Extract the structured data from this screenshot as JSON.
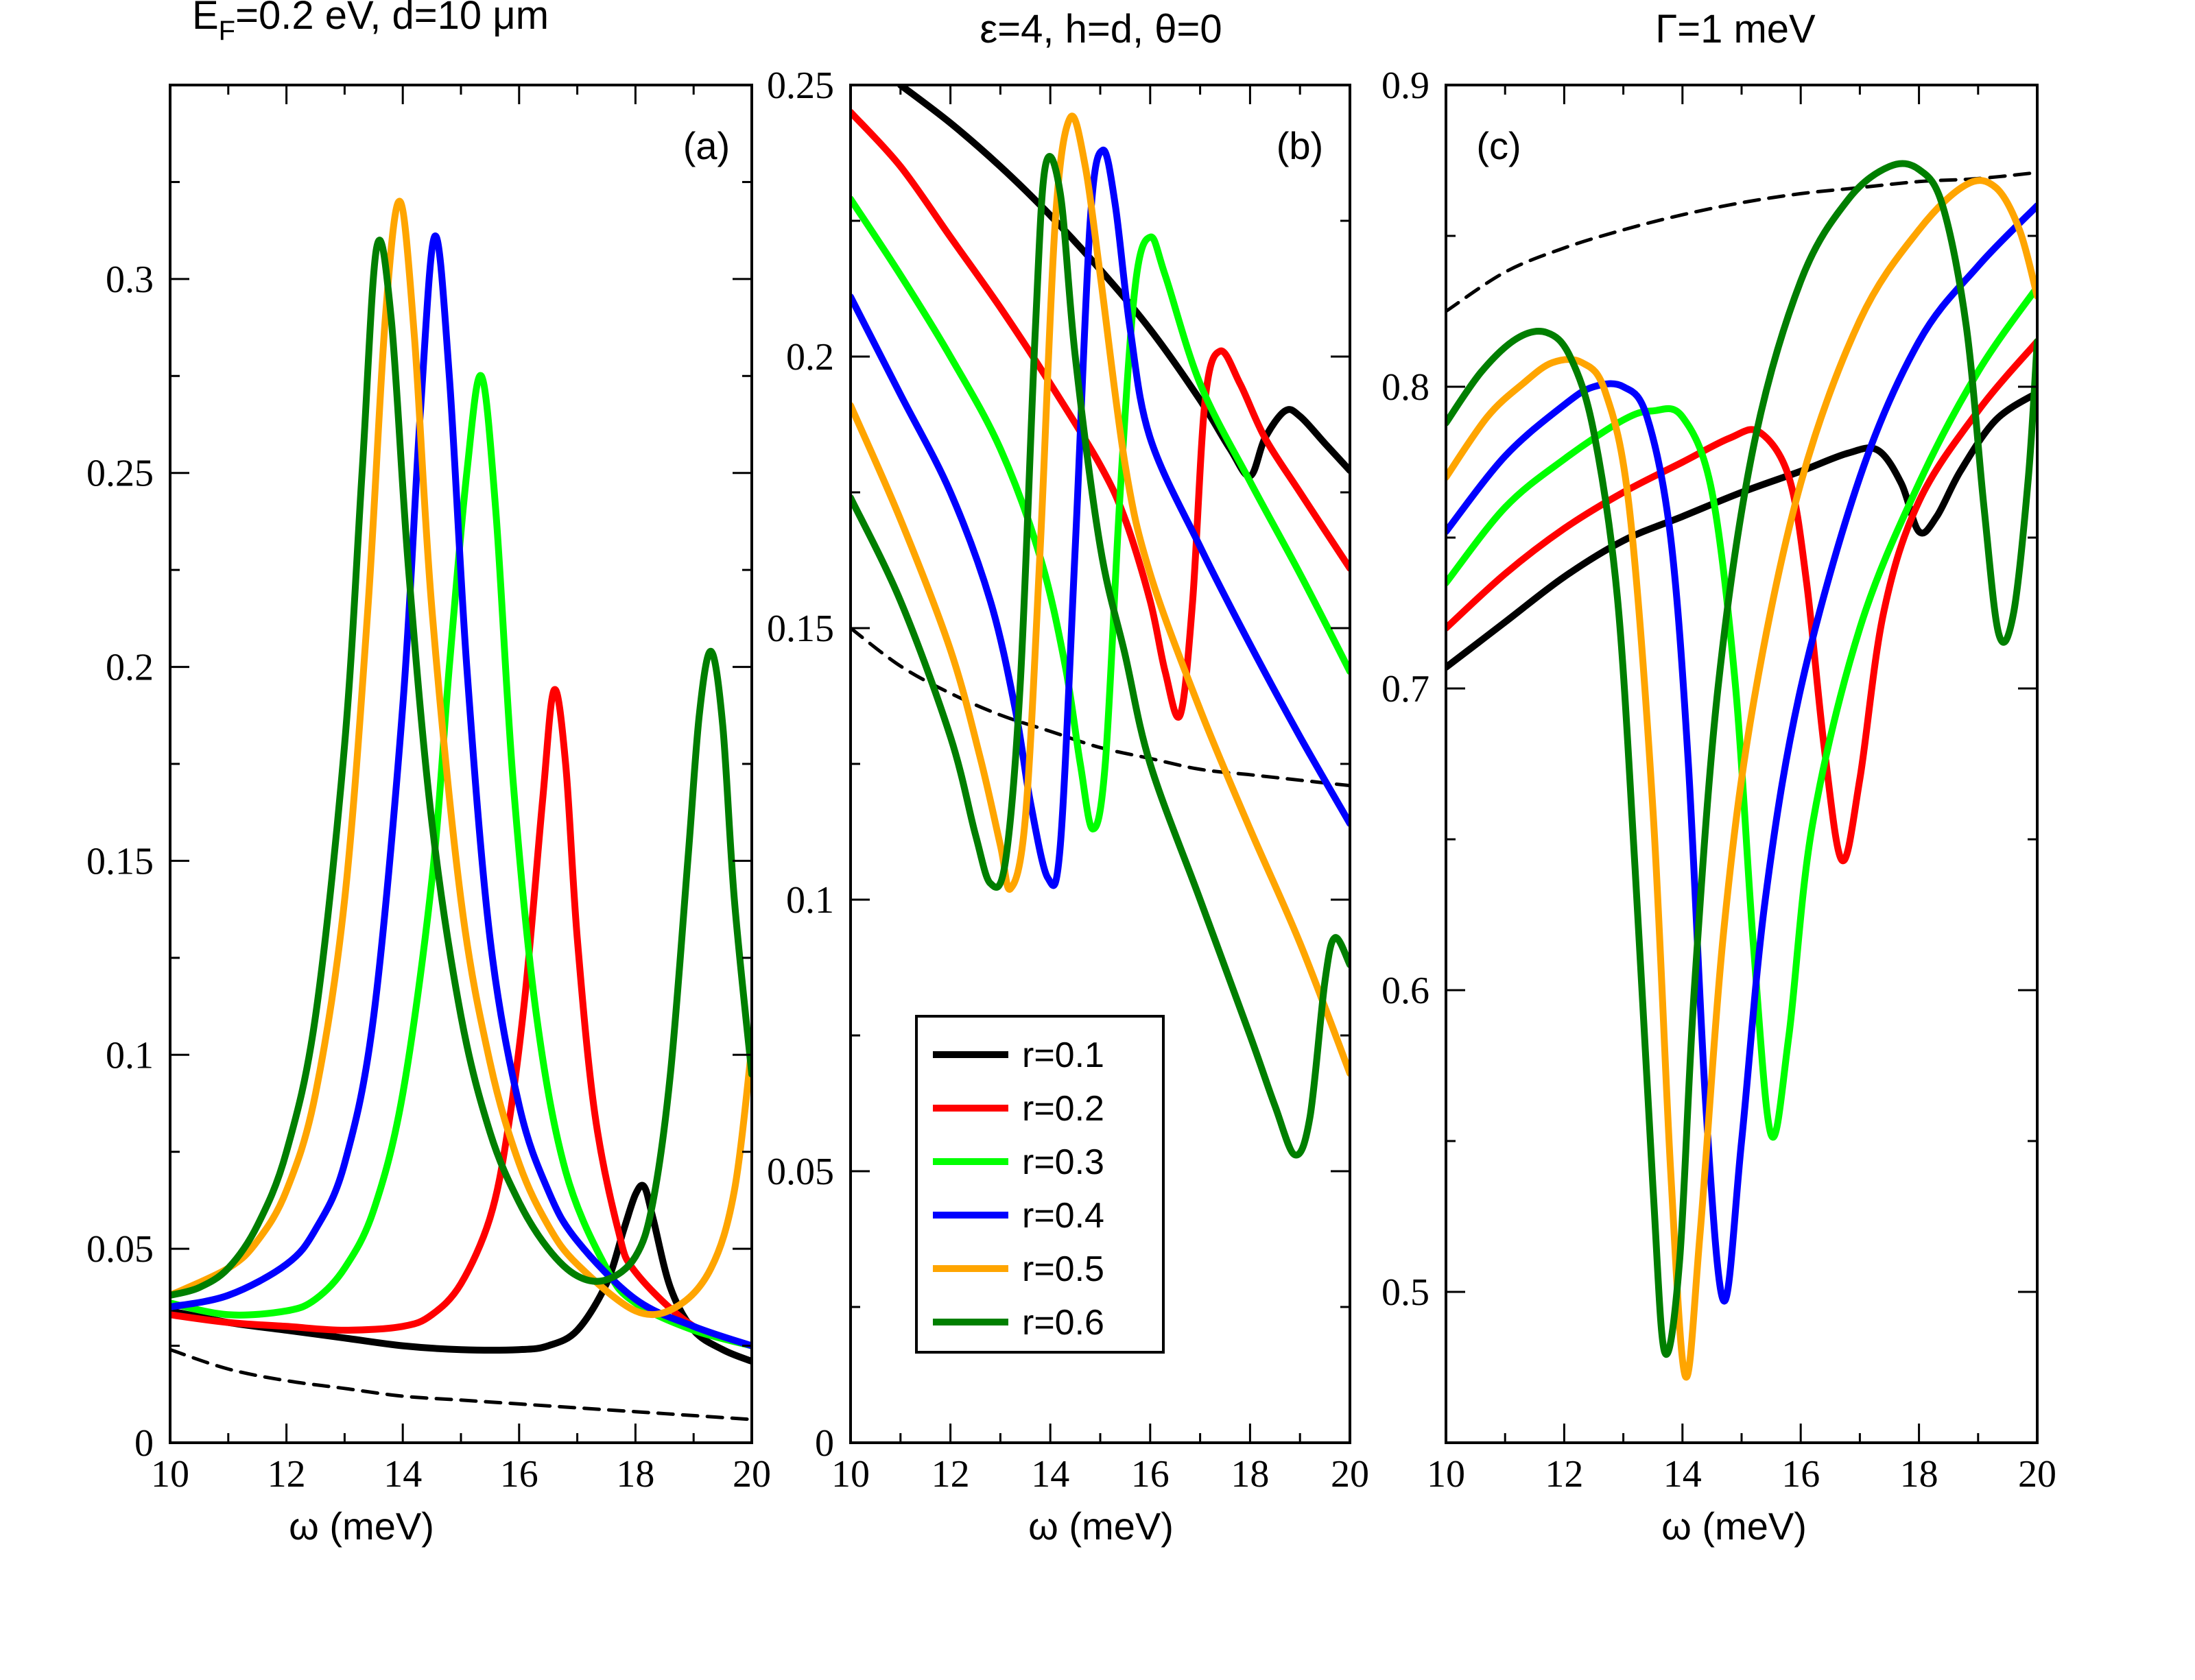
{
  "chart_data": [
    {
      "type": "line",
      "panel_label": "(a)",
      "title_parts": {
        "prefix": "E",
        "subscript": "F",
        "suffix": "=0.2 eV, d=10 μm"
      },
      "xlabel": "ω (meV)",
      "ylabel": "",
      "xlim": [
        10,
        20
      ],
      "ylim": [
        0,
        0.35
      ],
      "xticks": [
        10,
        12,
        14,
        16,
        18,
        20
      ],
      "yticks": [
        0,
        0.05,
        0.1,
        0.15,
        0.2,
        0.25,
        0.3
      ],
      "ytick_labels": [
        "0",
        "0.05",
        "0.1",
        "0.15",
        "0.2",
        "0.25",
        "0.3"
      ],
      "series": [
        {
          "name": "r=0.1",
          "color": "#000000",
          "x": [
            10,
            11,
            12,
            13,
            14,
            15,
            16,
            16.5,
            17,
            17.5,
            17.8,
            18.0,
            18.15,
            18.3,
            18.6,
            19,
            19.5,
            20
          ],
          "y": [
            0.034,
            0.031,
            0.029,
            0.027,
            0.025,
            0.024,
            0.024,
            0.025,
            0.029,
            0.041,
            0.055,
            0.064,
            0.066,
            0.058,
            0.04,
            0.029,
            0.024,
            0.021
          ]
        },
        {
          "name": "r=0.2",
          "color": "#ff0000",
          "x": [
            10,
            11,
            12,
            13,
            14,
            14.5,
            15,
            15.5,
            15.8,
            16.1,
            16.4,
            16.6,
            16.8,
            17.0,
            17.3,
            17.7,
            18,
            19,
            20
          ],
          "y": [
            0.033,
            0.031,
            0.03,
            0.029,
            0.03,
            0.033,
            0.041,
            0.058,
            0.08,
            0.115,
            0.165,
            0.194,
            0.175,
            0.13,
            0.085,
            0.055,
            0.044,
            0.03,
            0.025
          ]
        },
        {
          "name": "r=0.3",
          "color": "#00ff00",
          "x": [
            10,
            11,
            12,
            12.5,
            13,
            13.5,
            14,
            14.5,
            14.8,
            15.1,
            15.35,
            15.6,
            15.9,
            16.3,
            16.8,
            17.5,
            18,
            19,
            20
          ],
          "y": [
            0.036,
            0.033,
            0.034,
            0.037,
            0.045,
            0.06,
            0.09,
            0.145,
            0.2,
            0.25,
            0.275,
            0.24,
            0.17,
            0.11,
            0.07,
            0.045,
            0.036,
            0.029,
            0.025
          ]
        },
        {
          "name": "r=0.4",
          "color": "#0000ff",
          "x": [
            10,
            11,
            12,
            12.5,
            13,
            13.5,
            14,
            14.3,
            14.55,
            14.8,
            15.1,
            15.5,
            16,
            16.5,
            17,
            18,
            19,
            20
          ],
          "y": [
            0.035,
            0.038,
            0.046,
            0.055,
            0.072,
            0.11,
            0.19,
            0.265,
            0.311,
            0.275,
            0.2,
            0.13,
            0.087,
            0.065,
            0.052,
            0.037,
            0.03,
            0.025
          ]
        },
        {
          "name": "r=0.5",
          "color": "#ffa500",
          "x": [
            10,
            11,
            11.5,
            12,
            12.5,
            13,
            13.4,
            13.7,
            13.95,
            14.2,
            14.5,
            15,
            15.5,
            16,
            16.5,
            17,
            18,
            18.7,
            19.3,
            19.7,
            20
          ],
          "y": [
            0.038,
            0.045,
            0.052,
            0.065,
            0.09,
            0.14,
            0.215,
            0.29,
            0.32,
            0.285,
            0.215,
            0.14,
            0.098,
            0.072,
            0.056,
            0.046,
            0.034,
            0.035,
            0.045,
            0.065,
            0.102
          ]
        },
        {
          "name": "r=0.6",
          "color": "#007f00",
          "x": [
            10,
            10.5,
            11,
            11.5,
            12,
            12.5,
            13,
            13.3,
            13.55,
            13.8,
            14.1,
            14.5,
            15,
            15.5,
            16,
            16.5,
            17,
            17.5,
            18,
            18.3,
            18.6,
            18.9,
            19.1,
            19.3,
            19.5,
            19.7,
            20
          ],
          "y": [
            0.038,
            0.04,
            0.045,
            0.056,
            0.075,
            0.11,
            0.18,
            0.25,
            0.308,
            0.29,
            0.225,
            0.16,
            0.11,
            0.08,
            0.062,
            0.05,
            0.043,
            0.042,
            0.048,
            0.062,
            0.095,
            0.15,
            0.188,
            0.204,
            0.185,
            0.14,
            0.095
          ]
        },
        {
          "name": "",
          "color": "#000000",
          "dashed": true,
          "x": [
            10,
            11,
            12,
            13,
            14,
            15,
            16,
            17,
            18,
            19,
            20
          ],
          "y": [
            0.024,
            0.019,
            0.016,
            0.014,
            0.012,
            0.011,
            0.01,
            0.009,
            0.008,
            0.007,
            0.006
          ]
        }
      ]
    },
    {
      "type": "line",
      "panel_label": "(b)",
      "title": "ε=4, h=d, θ=0",
      "xlabel": "ω (meV)",
      "ylabel": "",
      "xlim": [
        10,
        20
      ],
      "ylim": [
        0,
        0.25
      ],
      "xticks": [
        10,
        12,
        14,
        16,
        18,
        20
      ],
      "yticks": [
        0,
        0.05,
        0.1,
        0.15,
        0.2,
        0.25
      ],
      "ytick_labels": [
        "0",
        "0.05",
        "0.1",
        "0.15",
        "0.2",
        "0.25"
      ],
      "legend": {
        "position": "lower-center",
        "entries": [
          "r=0.1",
          "r=0.2",
          "r=0.3",
          "r=0.4",
          "r=0.5",
          "r=0.6"
        ]
      },
      "series": [
        {
          "name": "r=0.1",
          "color": "#000000",
          "x": [
            11,
            12,
            13,
            14,
            15,
            16,
            17,
            17.6,
            18.0,
            18.3,
            18.7,
            19.0,
            19.5,
            20
          ],
          "y": [
            0.25,
            0.243,
            0.235,
            0.226,
            0.216,
            0.205,
            0.192,
            0.183,
            0.178,
            0.185,
            0.19,
            0.189,
            0.184,
            0.179
          ]
        },
        {
          "name": "r=0.2",
          "color": "#ff0000",
          "x": [
            10,
            11,
            12,
            13,
            14,
            15,
            15.5,
            16,
            16.3,
            16.6,
            16.85,
            17.1,
            17.4,
            17.8,
            18.3,
            19,
            20
          ],
          "y": [
            0.245,
            0.235,
            0.222,
            0.209,
            0.195,
            0.18,
            0.17,
            0.155,
            0.142,
            0.134,
            0.155,
            0.192,
            0.201,
            0.195,
            0.185,
            0.175,
            0.161
          ]
        },
        {
          "name": "r=0.3",
          "color": "#00ff00",
          "x": [
            10,
            11,
            12,
            13,
            13.8,
            14.3,
            14.6,
            14.85,
            15.1,
            15.4,
            15.7,
            16,
            16.3,
            17,
            18,
            19,
            20
          ],
          "y": [
            0.229,
            0.215,
            0.2,
            0.183,
            0.163,
            0.143,
            0.125,
            0.113,
            0.125,
            0.175,
            0.213,
            0.222,
            0.215,
            0.195,
            0.177,
            0.16,
            0.142
          ]
        },
        {
          "name": "r=0.4",
          "color": "#0000ff",
          "x": [
            10,
            11,
            12,
            12.8,
            13.3,
            13.6,
            13.95,
            14.2,
            14.5,
            14.8,
            15.05,
            15.3,
            15.6,
            16,
            17,
            18,
            19,
            20
          ],
          "y": [
            0.211,
            0.193,
            0.175,
            0.155,
            0.135,
            0.118,
            0.104,
            0.11,
            0.165,
            0.225,
            0.238,
            0.228,
            0.205,
            0.185,
            0.165,
            0.147,
            0.13,
            0.114
          ]
        },
        {
          "name": "r=0.5",
          "color": "#ffa500",
          "x": [
            10,
            11,
            12,
            12.6,
            13.0,
            13.2,
            13.5,
            13.8,
            14.1,
            14.4,
            14.7,
            15,
            15.5,
            16,
            17,
            18,
            19,
            20
          ],
          "y": [
            0.191,
            0.17,
            0.146,
            0.126,
            0.11,
            0.102,
            0.115,
            0.165,
            0.225,
            0.244,
            0.235,
            0.215,
            0.18,
            0.16,
            0.135,
            0.113,
            0.092,
            0.068
          ]
        },
        {
          "name": "r=0.6",
          "color": "#007f00",
          "x": [
            10,
            11,
            12,
            12.5,
            12.8,
            13.1,
            13.4,
            13.7,
            13.9,
            14.2,
            14.5,
            15,
            15.5,
            16,
            17,
            18,
            18.5,
            18.9,
            19.2,
            19.5,
            19.7,
            20
          ],
          "y": [
            0.174,
            0.155,
            0.13,
            0.112,
            0.103,
            0.107,
            0.14,
            0.205,
            0.235,
            0.23,
            0.2,
            0.165,
            0.145,
            0.125,
            0.1,
            0.075,
            0.062,
            0.053,
            0.06,
            0.085,
            0.093,
            0.088
          ]
        },
        {
          "name": "",
          "color": "#000000",
          "dashed": true,
          "x": [
            10,
            11,
            12,
            13,
            14,
            15,
            16,
            17,
            18,
            19,
            20
          ],
          "y": [
            0.15,
            0.143,
            0.138,
            0.134,
            0.131,
            0.128,
            0.126,
            0.124,
            0.123,
            0.122,
            0.121
          ]
        }
      ]
    },
    {
      "type": "line",
      "panel_label": "(c)",
      "title": "Γ=1 meV",
      "xlabel": "ω (meV)",
      "ylabel": "",
      "xlim": [
        10,
        20
      ],
      "ylim": [
        0.45,
        0.9
      ],
      "xticks": [
        10,
        12,
        14,
        16,
        18,
        20
      ],
      "yticks": [
        0.5,
        0.6,
        0.7,
        0.8,
        0.9
      ],
      "ytick_labels": [
        "0.5",
        "0.6",
        "0.7",
        "0.8",
        "0.9"
      ],
      "series": [
        {
          "name": "r=0.1",
          "color": "#000000",
          "x": [
            10,
            11,
            12,
            13,
            14,
            15,
            16,
            16.8,
            17.3,
            17.7,
            18.0,
            18.3,
            18.7,
            19.3,
            20
          ],
          "y": [
            0.707,
            0.722,
            0.737,
            0.749,
            0.757,
            0.765,
            0.772,
            0.778,
            0.779,
            0.768,
            0.752,
            0.757,
            0.772,
            0.789,
            0.798
          ]
        },
        {
          "name": "r=0.2",
          "color": "#ff0000",
          "x": [
            10,
            11,
            12,
            13,
            14,
            14.8,
            15.3,
            15.8,
            16.1,
            16.4,
            16.7,
            17.0,
            17.4,
            18,
            19,
            20
          ],
          "y": [
            0.72,
            0.738,
            0.753,
            0.765,
            0.775,
            0.783,
            0.785,
            0.77,
            0.735,
            0.68,
            0.643,
            0.67,
            0.725,
            0.762,
            0.792,
            0.815
          ]
        },
        {
          "name": "r=0.3",
          "color": "#00ff00",
          "x": [
            10,
            11,
            12,
            13,
            13.5,
            14,
            14.5,
            14.9,
            15.2,
            15.5,
            15.8,
            16.2,
            17,
            18,
            19,
            20
          ],
          "y": [
            0.735,
            0.76,
            0.776,
            0.789,
            0.792,
            0.79,
            0.765,
            0.7,
            0.615,
            0.552,
            0.585,
            0.655,
            0.72,
            0.768,
            0.805,
            0.833
          ]
        },
        {
          "name": "r=0.4",
          "color": "#0000ff",
          "x": [
            10,
            11,
            12,
            12.5,
            13,
            13.4,
            13.8,
            14.1,
            14.4,
            14.7,
            15.0,
            15.4,
            16,
            17,
            18,
            19,
            20
          ],
          "y": [
            0.752,
            0.777,
            0.794,
            0.8,
            0.8,
            0.79,
            0.75,
            0.675,
            0.56,
            0.497,
            0.55,
            0.63,
            0.7,
            0.77,
            0.815,
            0.84,
            0.86
          ]
        },
        {
          "name": "r=0.5",
          "color": "#ffa500",
          "x": [
            10,
            10.7,
            11.3,
            11.8,
            12.3,
            12.7,
            13.1,
            13.5,
            13.8,
            14.05,
            14.3,
            14.7,
            15.2,
            16,
            17,
            18,
            18.8,
            19.3,
            19.7,
            20
          ],
          "y": [
            0.77,
            0.79,
            0.801,
            0.808,
            0.808,
            0.798,
            0.76,
            0.66,
            0.54,
            0.472,
            0.52,
            0.62,
            0.695,
            0.768,
            0.822,
            0.852,
            0.867,
            0.866,
            0.852,
            0.83
          ]
        },
        {
          "name": "r=0.6",
          "color": "#007f00",
          "x": [
            10,
            10.6,
            11.2,
            11.7,
            12.1,
            12.5,
            12.9,
            13.2,
            13.5,
            13.7,
            13.95,
            14.2,
            14.6,
            15.2,
            16,
            16.8,
            17.5,
            18.0,
            18.4,
            18.8,
            19.1,
            19.35,
            19.6,
            19.85,
            20
          ],
          "y": [
            0.788,
            0.805,
            0.816,
            0.818,
            0.81,
            0.785,
            0.73,
            0.64,
            0.535,
            0.48,
            0.51,
            0.6,
            0.7,
            0.78,
            0.835,
            0.862,
            0.873,
            0.872,
            0.86,
            0.82,
            0.76,
            0.718,
            0.725,
            0.77,
            0.815
          ]
        },
        {
          "name": "",
          "color": "#000000",
          "dashed": true,
          "x": [
            10,
            11,
            12,
            13,
            14,
            15,
            16,
            17,
            18,
            19,
            20
          ],
          "y": [
            0.825,
            0.838,
            0.846,
            0.852,
            0.857,
            0.861,
            0.864,
            0.866,
            0.868,
            0.869,
            0.871
          ]
        }
      ]
    }
  ]
}
